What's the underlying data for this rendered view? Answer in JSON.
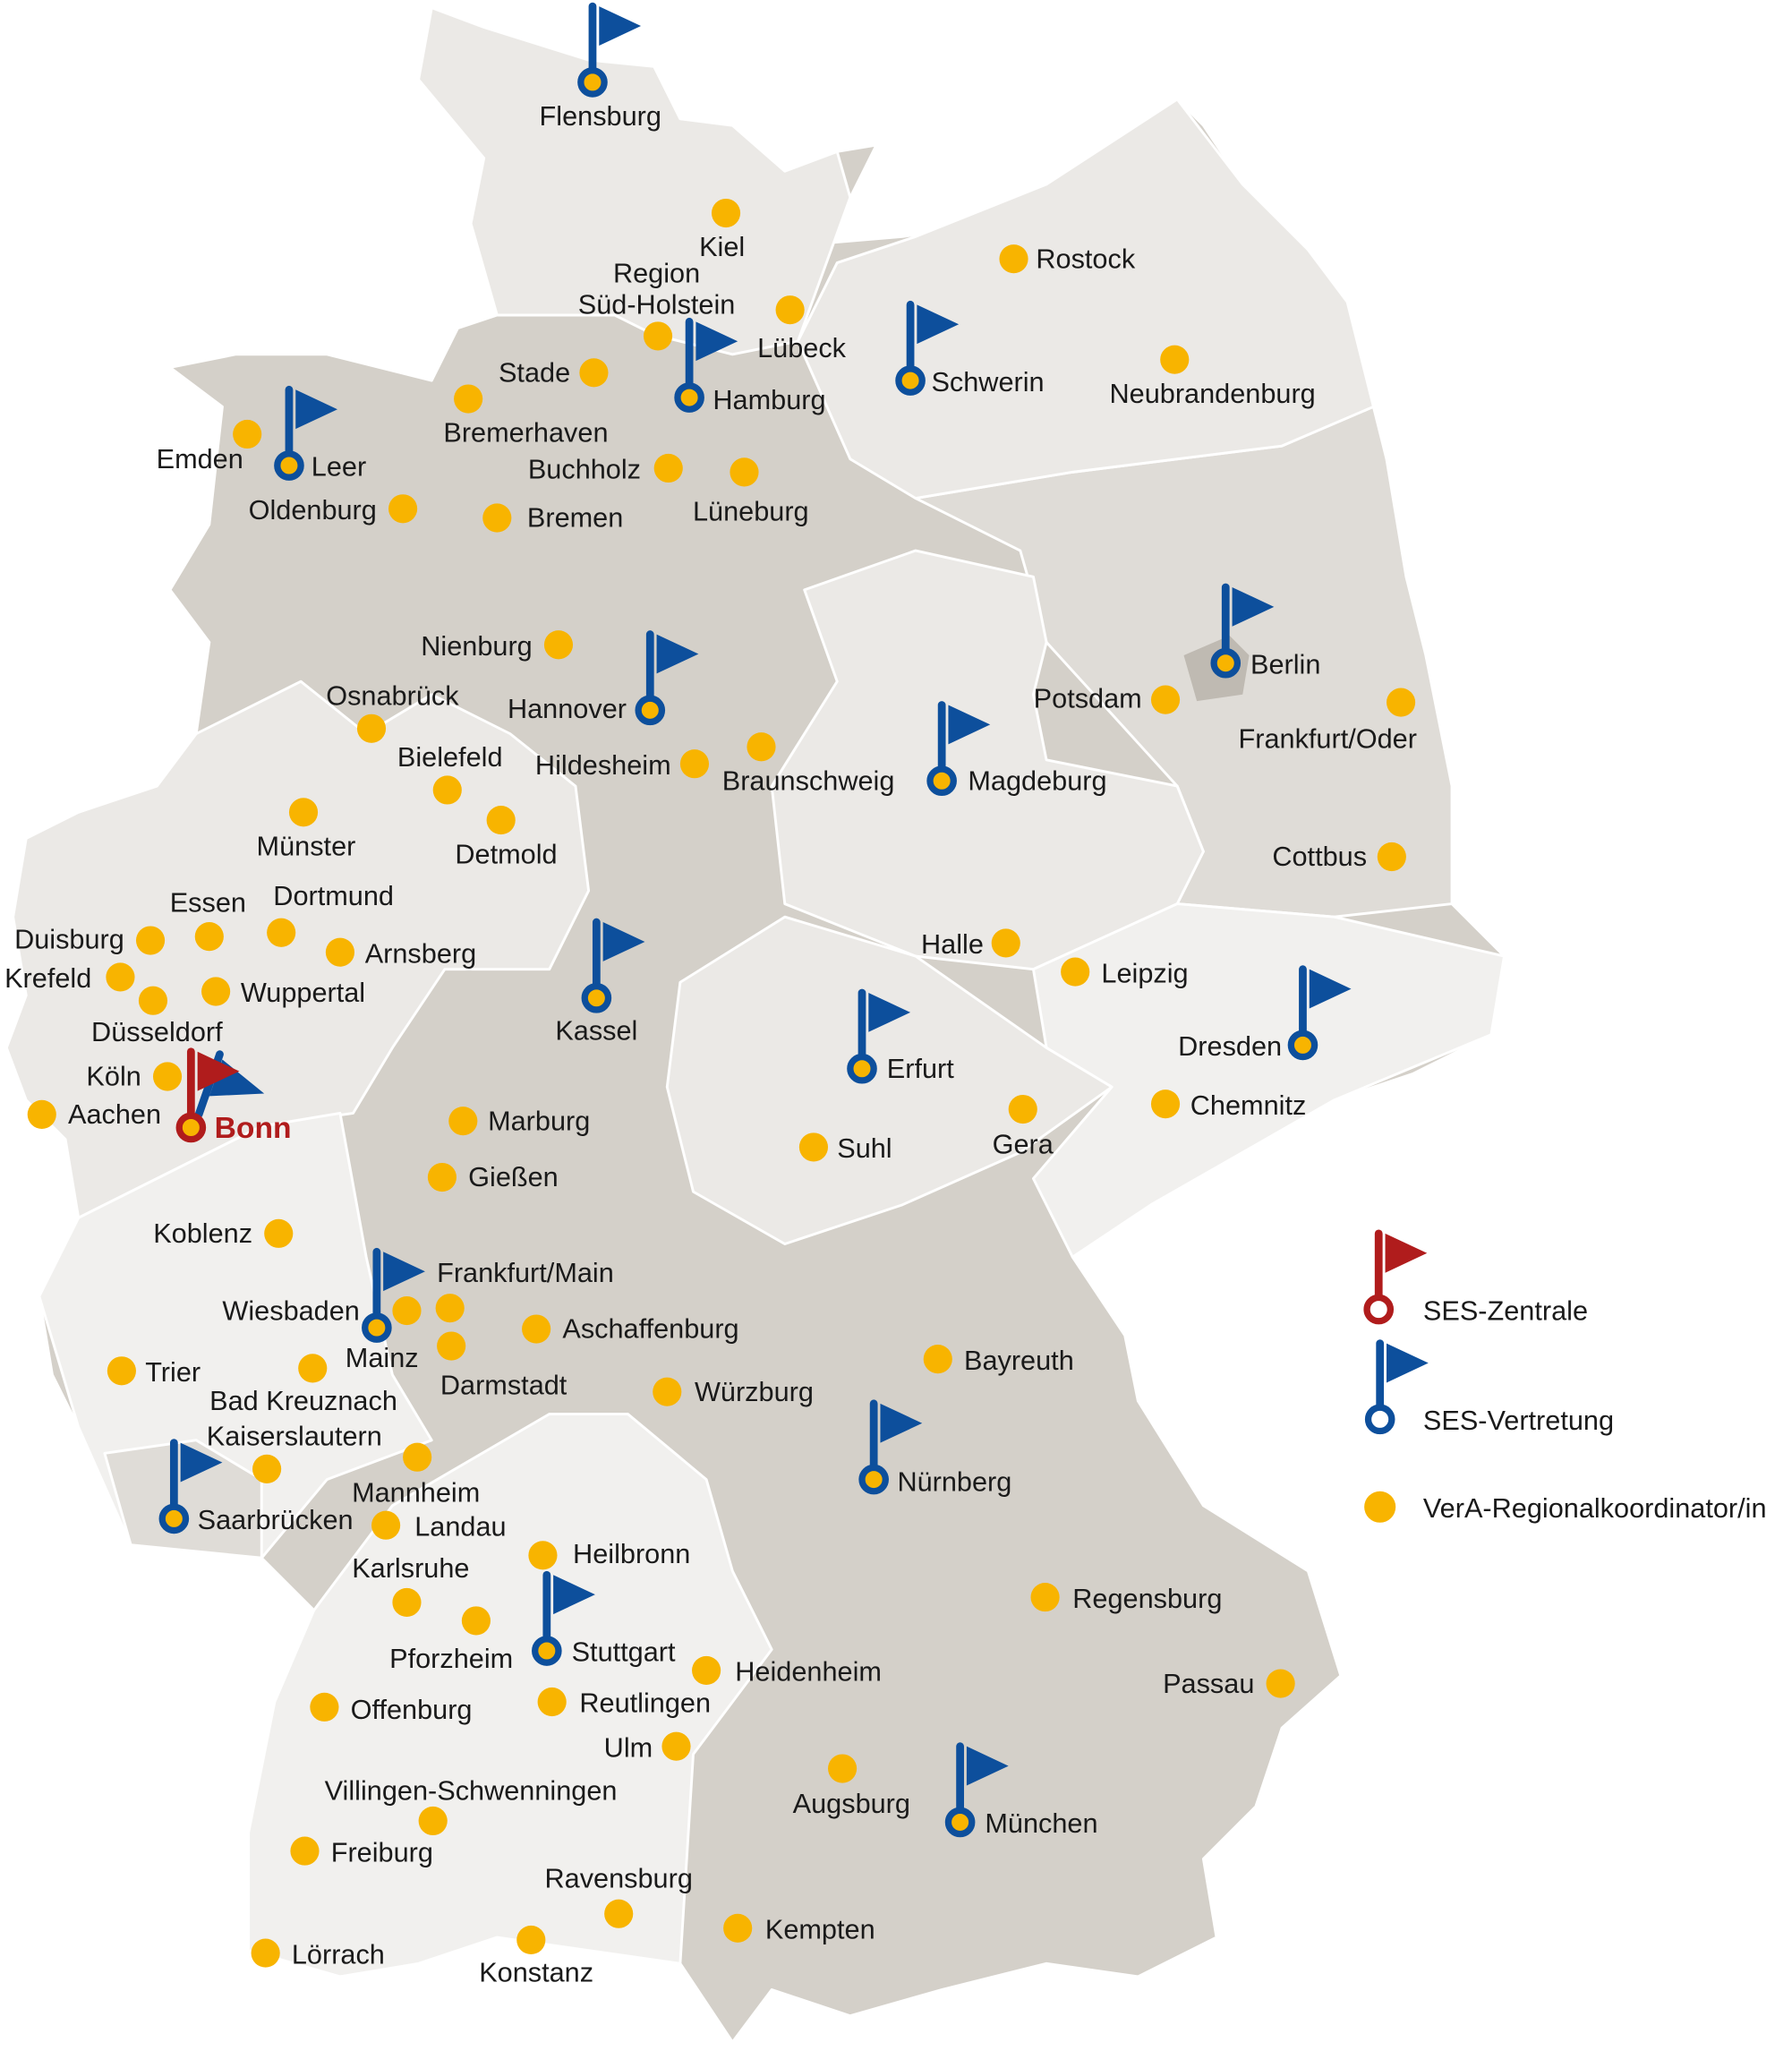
{
  "colors": {
    "zentrale": "#b01c1c",
    "vertretung": "#0d4f9c",
    "vera": "#f8b400",
    "land_dark": "#d4d0c9",
    "land_mid": "#dfdcd7",
    "land_light": "#ebe9e6",
    "land_lightest": "#f1f0ee"
  },
  "legend": {
    "zentrale": {
      "label": "SES-Zentrale",
      "icon": "red-flag-pin-icon"
    },
    "vertretung": {
      "label": "SES-Vertretung",
      "icon": "blue-flag-pin-icon"
    },
    "vera": {
      "label": "VerA-Regionalkoordinator/in",
      "icon": "yellow-dot-icon"
    }
  },
  "zentrale": [
    "Bonn"
  ],
  "vertretungen": [
    "Flensburg",
    "Hamburg",
    "Schwerin",
    "Leer",
    "Berlin",
    "Hannover",
    "Magdeburg",
    "Kassel",
    "Erfurt",
    "Dresden",
    "Frankfurt/Main",
    "Saarbrücken",
    "Nürnberg",
    "Stuttgart",
    "München"
  ],
  "vera": [
    "Kiel",
    "Region\nSüd-Holstein",
    "Lübeck",
    "Rostock",
    "Neubrandenburg",
    "Stade",
    "Bremerhaven",
    "Emden",
    "Buchholz",
    "Lüneburg",
    "Oldenburg",
    "Bremen",
    "Nienburg",
    "Osnabrück",
    "Bielefeld",
    "Hildesheim",
    "Braunschweig",
    "Potsdam",
    "Frankfurt/Oder",
    "Münster",
    "Detmold",
    "Cottbus",
    "Essen",
    "Dortmund",
    "Duisburg",
    "Arnsberg",
    "Krefeld",
    "Düsseldorf",
    "Wuppertal",
    "Köln",
    "Aachen",
    "Halle",
    "Leipzig",
    "Chemnitz",
    "Gera",
    "Suhl",
    "Marburg",
    "Gießen",
    "Koblenz",
    "Wiesbaden",
    "Mainz",
    "Darmstadt",
    "Aschaffenburg",
    "Trier",
    "Bad Kreuznach",
    "Würzburg",
    "Bayreuth",
    "Kaiserslautern",
    "Mannheim",
    "Landau",
    "Karlsruhe",
    "Heilbronn",
    "Pforzheim",
    "Regensburg",
    "Heidenheim",
    "Passau",
    "Offenburg",
    "Reutlingen",
    "Ulm",
    "Augsburg",
    "Villingen-Schwenningen",
    "Freiburg",
    "Ravensburg",
    "Kempten",
    "Lörrach",
    "Konstanz"
  ]
}
